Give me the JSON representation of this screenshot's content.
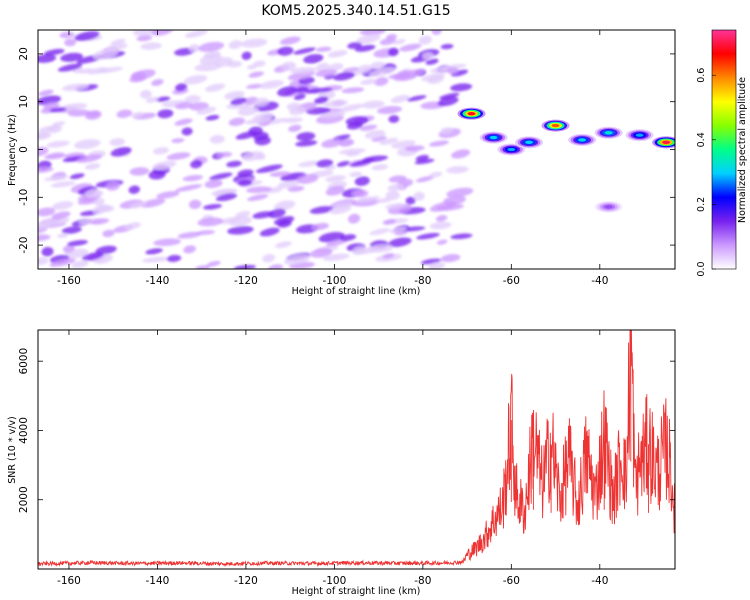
{
  "title": "KOM5.2025.340.14.51.G15",
  "colors": {
    "snr_line": "#ee3333",
    "spectrogram_low": "#b88af0",
    "spectrogram_mid": "#7a1fe0",
    "axis": "#000000"
  },
  "chart_data": [
    {
      "type": "heatmap",
      "name": "spectrogram",
      "xlabel": "Height of straight line (km)",
      "ylabel": "Frequency (Hz)",
      "xlim": [
        -167,
        -23
      ],
      "ylim": [
        -25,
        25
      ],
      "x_ticks": [
        -160,
        -140,
        -120,
        -100,
        -80,
        -60,
        -40
      ],
      "x_tick_labels": [
        "-160",
        "-140",
        "-120",
        "-100",
        "-80",
        "-60",
        "-40"
      ],
      "y_ticks": [
        -20,
        -10,
        0,
        10,
        20
      ],
      "y_tick_labels": [
        "-20",
        "-10",
        "0",
        "10",
        "20"
      ],
      "noise_region_x": [
        -167,
        -71
      ],
      "signal_track": [
        {
          "x": -69,
          "y": 7.5,
          "value": 0.68
        },
        {
          "x": -64,
          "y": 2.5,
          "value": 0.3
        },
        {
          "x": -60,
          "y": 0.0,
          "value": 0.28
        },
        {
          "x": -56,
          "y": 1.5,
          "value": 0.3
        },
        {
          "x": -50,
          "y": 5.0,
          "value": 0.62
        },
        {
          "x": -44,
          "y": 2.0,
          "value": 0.3
        },
        {
          "x": -38,
          "y": 3.5,
          "value": 0.32
        },
        {
          "x": -31,
          "y": 3.0,
          "value": 0.28
        },
        {
          "x": -25,
          "y": 1.5,
          "value": 0.7
        }
      ],
      "isolated_blob": {
        "x": -38,
        "y": -12,
        "value": 0.12
      },
      "colorbar": {
        "label": "Normalized spectral amplitude",
        "range": [
          0,
          0.74
        ],
        "ticks": [
          0.0,
          0.2,
          0.4,
          0.6
        ],
        "tick_labels": [
          "0.0",
          "0.2",
          "0.4",
          "0.6"
        ],
        "stops": [
          "#ffffff",
          "#cc99ff",
          "#7722ee",
          "#0000ff",
          "#00d0ff",
          "#00ff88",
          "#88ff00",
          "#ffff00",
          "#ff8800",
          "#ff0000",
          "#ff3399"
        ]
      }
    },
    {
      "type": "line",
      "name": "snr",
      "xlabel": "Height of straight line (km)",
      "ylabel": "SNR (10 * v/v)",
      "xlim": [
        -167,
        -23
      ],
      "ylim": [
        0,
        6900
      ],
      "x_ticks": [
        -160,
        -140,
        -120,
        -100,
        -80,
        -60,
        -40
      ],
      "x_tick_labels": [
        "-160",
        "-140",
        "-120",
        "-100",
        "-80",
        "-60",
        "-40"
      ],
      "y_ticks": [
        2000,
        4000,
        6000
      ],
      "y_tick_labels": [
        "2000",
        "4000",
        "6000"
      ],
      "series": [
        {
          "name": "SNR",
          "x": [
            -167,
            -155,
            -145,
            -135,
            -125,
            -115,
            -105,
            -95,
            -85,
            -75,
            -71,
            -70,
            -68,
            -66,
            -64,
            -62,
            -61,
            -60,
            -59,
            -57,
            -55,
            -53,
            -51,
            -49,
            -47,
            -45,
            -43,
            -41,
            -39,
            -37,
            -35,
            -34,
            -33,
            -32,
            -31,
            -29,
            -27,
            -25,
            -24,
            -23
          ],
          "y": [
            150,
            180,
            160,
            175,
            150,
            170,
            160,
            180,
            165,
            175,
            200,
            400,
            600,
            900,
            1400,
            1800,
            2800,
            4300,
            2200,
            1600,
            3800,
            2400,
            3600,
            2000,
            3200,
            1800,
            3300,
            2100,
            3800,
            2000,
            3400,
            2500,
            6900,
            2300,
            3000,
            3600,
            2800,
            3500,
            2900,
            1600
          ]
        }
      ]
    }
  ]
}
